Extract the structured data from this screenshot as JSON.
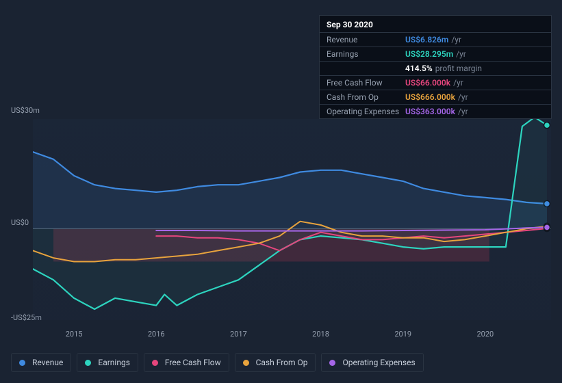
{
  "tooltip": {
    "date": "Sep 30 2020",
    "rows": [
      {
        "label": "Revenue",
        "value": "US$6.826m",
        "unit": "/yr",
        "color": "#3f8ae0"
      },
      {
        "label": "Earnings",
        "value": "US$28.295m",
        "unit": "/yr",
        "color": "#2dd4bf"
      },
      {
        "label": "",
        "value": "414.5%",
        "unit": "profit margin",
        "color": "#ffffff"
      },
      {
        "label": "Free Cash Flow",
        "value": "US$66.000k",
        "unit": "/yr",
        "color": "#e6467d"
      },
      {
        "label": "Cash From Op",
        "value": "US$666.000k",
        "unit": "/yr",
        "color": "#e8a33d"
      },
      {
        "label": "Operating Expenses",
        "value": "US$363.000k",
        "unit": "/yr",
        "color": "#a566e8"
      }
    ]
  },
  "chart": {
    "type": "line",
    "background": "#1a2332",
    "plot_background": "rgba(30,45,70,.2)",
    "y_axis": {
      "min": -25,
      "max": 30,
      "labels": [
        {
          "v": 30,
          "t": "US$30m"
        },
        {
          "v": 0,
          "t": "US$0"
        },
        {
          "v": -25,
          "t": "-US$25m"
        }
      ]
    },
    "x_axis": {
      "min": 2014.5,
      "max": 2020.8,
      "ticks": [
        2015,
        2016,
        2017,
        2018,
        2019,
        2020
      ]
    },
    "zero_line_color": "#5a6578",
    "highlight_band": {
      "from": 2014.75,
      "to": 2020.05,
      "fill": "rgba(235,60,90,0.18)"
    },
    "marker_x": 2020.75,
    "series": [
      {
        "name": "Revenue",
        "color": "#3f8ae0",
        "width": 2.2,
        "fill": "rgba(63,138,224,0.12)",
        "marker": 6.826,
        "points": [
          [
            2014.5,
            21
          ],
          [
            2014.75,
            19
          ],
          [
            2015,
            14.5
          ],
          [
            2015.25,
            12
          ],
          [
            2015.5,
            11
          ],
          [
            2015.75,
            10.5
          ],
          [
            2016,
            10
          ],
          [
            2016.25,
            10.5
          ],
          [
            2016.5,
            11.5
          ],
          [
            2016.75,
            12
          ],
          [
            2017,
            12
          ],
          [
            2017.25,
            13
          ],
          [
            2017.5,
            14
          ],
          [
            2017.75,
            15.5
          ],
          [
            2018,
            16
          ],
          [
            2018.25,
            16
          ],
          [
            2018.5,
            15
          ],
          [
            2018.75,
            14
          ],
          [
            2019,
            13
          ],
          [
            2019.25,
            11
          ],
          [
            2019.5,
            10
          ],
          [
            2019.75,
            9
          ],
          [
            2020,
            8.5
          ],
          [
            2020.25,
            8
          ],
          [
            2020.5,
            7.2
          ],
          [
            2020.75,
            6.826
          ]
        ]
      },
      {
        "name": "Earnings",
        "color": "#2dd4bf",
        "width": 2.2,
        "fill": "rgba(45,212,191,0.06)",
        "marker": 28.295,
        "points": [
          [
            2014.5,
            -11
          ],
          [
            2014.75,
            -14
          ],
          [
            2015,
            -19
          ],
          [
            2015.25,
            -22
          ],
          [
            2015.5,
            -19
          ],
          [
            2015.75,
            -20
          ],
          [
            2016,
            -21
          ],
          [
            2016.1,
            -18
          ],
          [
            2016.25,
            -21
          ],
          [
            2016.5,
            -18
          ],
          [
            2016.75,
            -16
          ],
          [
            2017,
            -14
          ],
          [
            2017.25,
            -10
          ],
          [
            2017.5,
            -6
          ],
          [
            2017.75,
            -3
          ],
          [
            2018,
            -2
          ],
          [
            2018.25,
            -2.5
          ],
          [
            2018.5,
            -3
          ],
          [
            2018.75,
            -4
          ],
          [
            2019,
            -5
          ],
          [
            2019.25,
            -5.5
          ],
          [
            2019.5,
            -5
          ],
          [
            2019.75,
            -5
          ],
          [
            2020,
            -5
          ],
          [
            2020.25,
            -5
          ],
          [
            2020.45,
            28
          ],
          [
            2020.6,
            30.5
          ],
          [
            2020.75,
            28.295
          ]
        ]
      },
      {
        "name": "Free Cash Flow",
        "color": "#e6467d",
        "width": 2,
        "fill": null,
        "marker": 0.066,
        "points": [
          [
            2016,
            -2
          ],
          [
            2016.25,
            -2
          ],
          [
            2016.5,
            -2.5
          ],
          [
            2016.75,
            -2.5
          ],
          [
            2017,
            -3
          ],
          [
            2017.25,
            -4
          ],
          [
            2017.5,
            -6
          ],
          [
            2017.75,
            -3
          ],
          [
            2018,
            -1
          ],
          [
            2018.25,
            -2
          ],
          [
            2018.5,
            -3
          ],
          [
            2018.75,
            -3
          ],
          [
            2019,
            -2.5
          ],
          [
            2019.25,
            -2
          ],
          [
            2019.5,
            -2.5
          ],
          [
            2019.75,
            -2
          ],
          [
            2020,
            -1.5
          ],
          [
            2020.25,
            -1
          ],
          [
            2020.5,
            -0.5
          ],
          [
            2020.75,
            0.066
          ]
        ]
      },
      {
        "name": "Cash From Op",
        "color": "#e8a33d",
        "width": 2,
        "fill": null,
        "marker": 0.666,
        "points": [
          [
            2014.5,
            -6
          ],
          [
            2014.75,
            -8
          ],
          [
            2015,
            -9
          ],
          [
            2015.25,
            -9
          ],
          [
            2015.5,
            -8.5
          ],
          [
            2015.75,
            -8.5
          ],
          [
            2016,
            -8
          ],
          [
            2016.25,
            -7.5
          ],
          [
            2016.5,
            -7
          ],
          [
            2016.75,
            -6
          ],
          [
            2017,
            -5
          ],
          [
            2017.25,
            -4
          ],
          [
            2017.5,
            -2
          ],
          [
            2017.75,
            2
          ],
          [
            2018,
            1
          ],
          [
            2018.25,
            -1
          ],
          [
            2018.5,
            -2
          ],
          [
            2018.75,
            -2
          ],
          [
            2019,
            -2.5
          ],
          [
            2019.25,
            -2.5
          ],
          [
            2019.5,
            -3.5
          ],
          [
            2019.75,
            -3
          ],
          [
            2020,
            -2
          ],
          [
            2020.25,
            -1
          ],
          [
            2020.5,
            0
          ],
          [
            2020.75,
            0.666
          ]
        ]
      },
      {
        "name": "Operating Expenses",
        "color": "#a566e8",
        "width": 2,
        "fill": null,
        "marker": 0.363,
        "points": [
          [
            2016,
            -0.5
          ],
          [
            2016.5,
            -0.5
          ],
          [
            2017,
            -0.6
          ],
          [
            2017.5,
            -0.6
          ],
          [
            2018,
            -0.6
          ],
          [
            2018.5,
            -0.6
          ],
          [
            2019,
            -0.5
          ],
          [
            2019.5,
            -0.4
          ],
          [
            2020,
            -0.3
          ],
          [
            2020.5,
            0.2
          ],
          [
            2020.75,
            0.363
          ]
        ]
      }
    ],
    "legend": [
      {
        "label": "Revenue",
        "color": "#3f8ae0"
      },
      {
        "label": "Earnings",
        "color": "#2dd4bf"
      },
      {
        "label": "Free Cash Flow",
        "color": "#e6467d"
      },
      {
        "label": "Cash From Op",
        "color": "#e8a33d"
      },
      {
        "label": "Operating Expenses",
        "color": "#a566e8"
      }
    ]
  }
}
